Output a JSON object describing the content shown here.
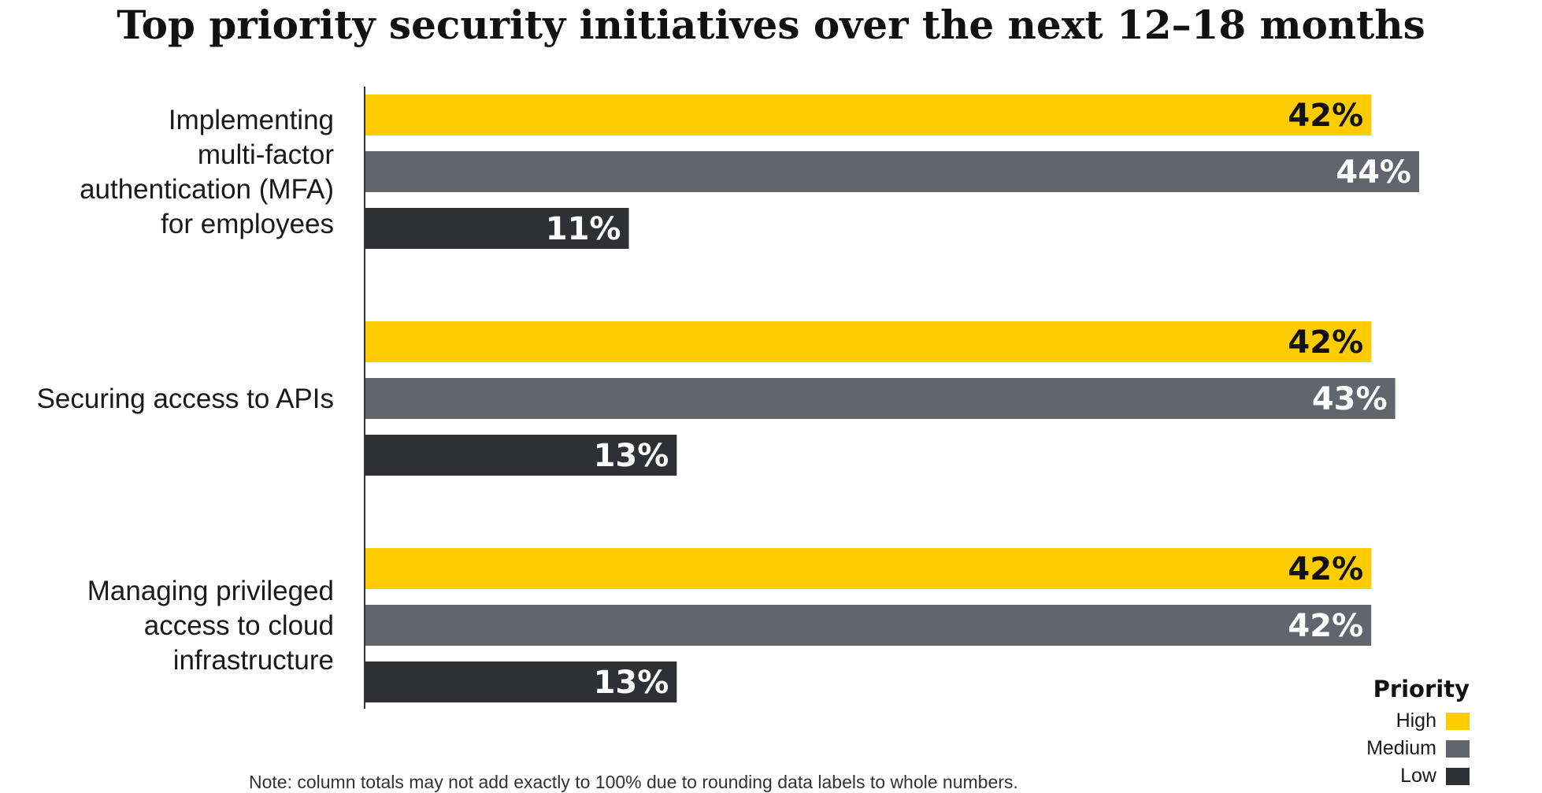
{
  "chart_data": {
    "type": "bar",
    "orientation": "horizontal",
    "title": "Top priority security initiatives over the next 12–18 months",
    "categories": [
      [
        "Implementing",
        "multi-factor",
        "authentication (MFA)",
        "for employees"
      ],
      [
        "Securing access to APIs"
      ],
      [
        "Managing privileged",
        "access to cloud",
        "infrastructure"
      ]
    ],
    "series": [
      {
        "name": "High",
        "color": "#FFCC00",
        "label_color": "#111111",
        "values": [
          42,
          42,
          42
        ]
      },
      {
        "name": "Medium",
        "color": "#63656E",
        "label_color": "#FFFFFF",
        "values": [
          44,
          43,
          42
        ]
      },
      {
        "name": "Low",
        "color": "#2F3034",
        "label_color": "#FFFFFF",
        "values": [
          11,
          13,
          13
        ]
      }
    ],
    "value_suffix": "%",
    "xlim": [
      0,
      44
    ],
    "grid": false,
    "legend": {
      "title": "Priority",
      "placement": "bottom-right"
    },
    "note": "Note: column totals may not add exactly to 100% due to rounding data labels to whole numbers."
  }
}
